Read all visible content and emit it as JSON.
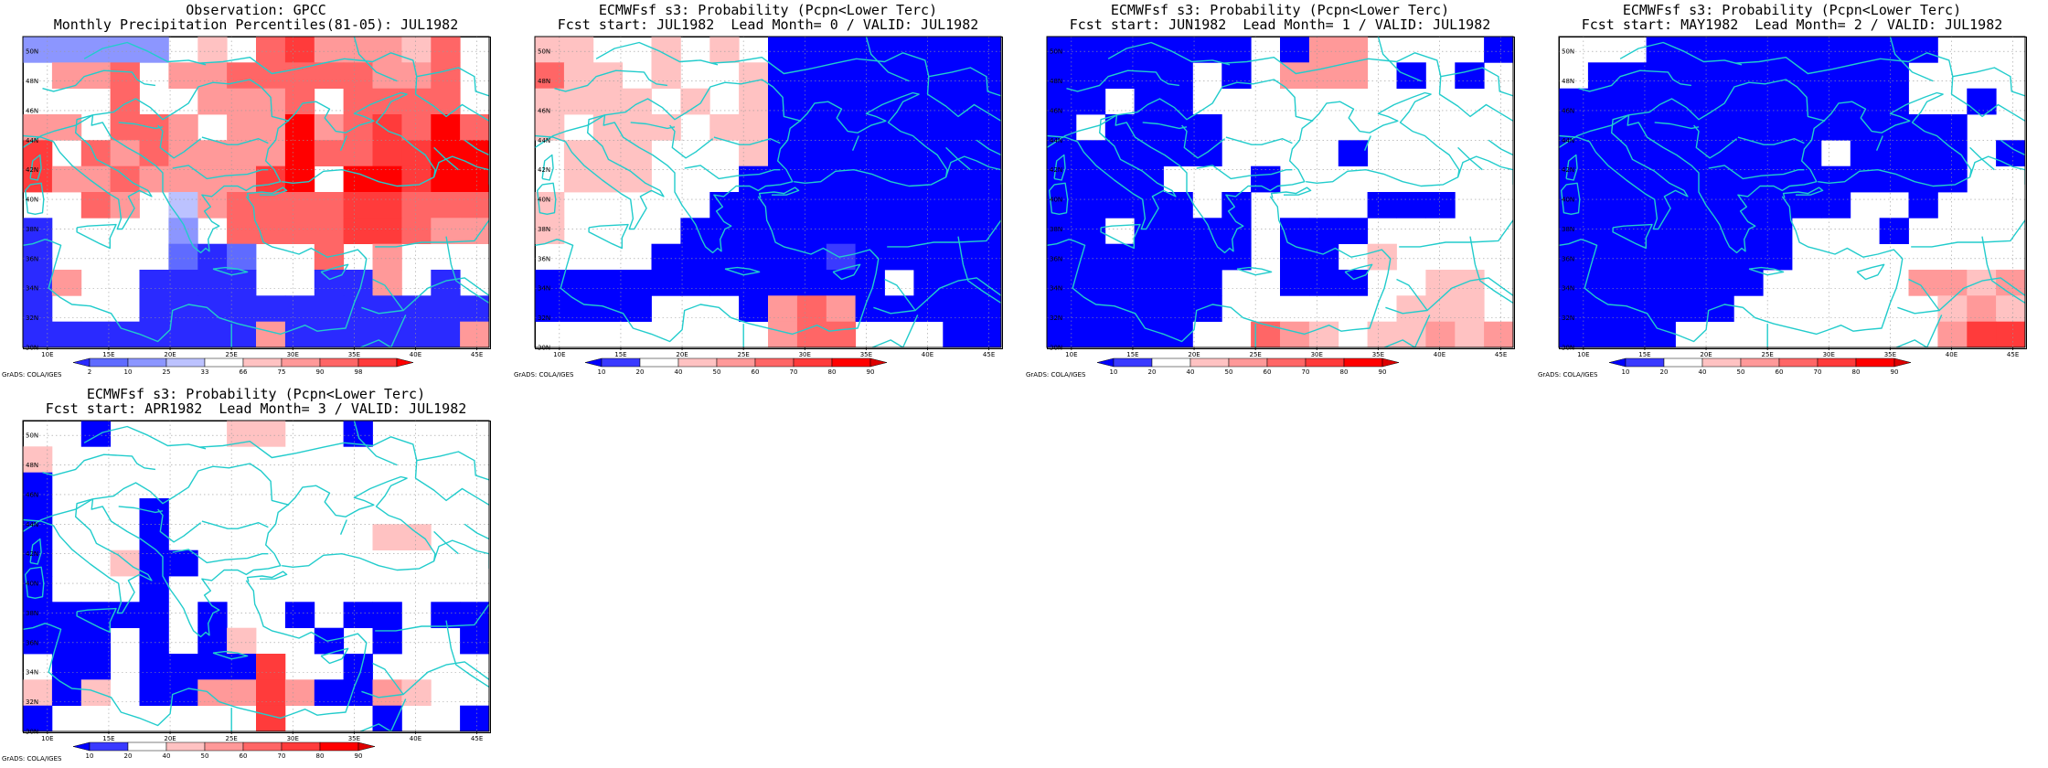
{
  "lat_labels": [
    "50N",
    "48N",
    "46N",
    "44N",
    "42N",
    "40N",
    "38N",
    "36N",
    "34N",
    "32N",
    "30N"
  ],
  "lon_labels": [
    "10E",
    "15E",
    "20E",
    "25E",
    "30E",
    "35E",
    "40E",
    "45E"
  ],
  "credit": "GrADS: COLA/IGES",
  "colors": {
    "coast": "#22cccc",
    "scale_obs": [
      "#2a2aff",
      "#5f6bff",
      "#8c96ff",
      "#bcc2ff",
      "#ffffff",
      "#ffc2c2",
      "#ff9999",
      "#ff6666",
      "#ff3b3b",
      "#ff0000"
    ],
    "scale_prob": [
      "#0000ff",
      "#3a3aff",
      "#ffffff",
      "#ffc2c2",
      "#ff9999",
      "#ff6666",
      "#ff3b3b",
      "#ff0000",
      "#dd0000"
    ]
  },
  "colorbars": {
    "obs": [
      "2",
      "10",
      "25",
      "33",
      "66",
      "75",
      "90",
      "98"
    ],
    "prob": [
      "10",
      "20",
      "40",
      "50",
      "60",
      "70",
      "80",
      "90"
    ]
  },
  "panels": [
    {
      "title1": "Observation: GPCC",
      "title2": "Monthly Precipitation Percentiles(81-05): JUL1982",
      "scale": "obs",
      "grid": [
        [
          2,
          2,
          2,
          2,
          2,
          4,
          5,
          4,
          7,
          8,
          6,
          6,
          6,
          5,
          7,
          4
        ],
        [
          4,
          6,
          6,
          7,
          4,
          6,
          6,
          7,
          7,
          7,
          7,
          7,
          6,
          6,
          7,
          4
        ],
        [
          4,
          4,
          4,
          7,
          4,
          4,
          6,
          6,
          6,
          7,
          4,
          7,
          7,
          7,
          7,
          4
        ],
        [
          6,
          6,
          4,
          7,
          7,
          6,
          4,
          6,
          6,
          9,
          6,
          7,
          8,
          7,
          9,
          7
        ],
        [
          8,
          4,
          7,
          6,
          7,
          6,
          6,
          6,
          6,
          9,
          7,
          7,
          8,
          8,
          9,
          9
        ],
        [
          8,
          6,
          6,
          7,
          6,
          6,
          6,
          6,
          8,
          9,
          4,
          9,
          9,
          8,
          9,
          9
        ],
        [
          4,
          4,
          7,
          6,
          4,
          3,
          6,
          7,
          7,
          7,
          7,
          8,
          8,
          7,
          7,
          7
        ],
        [
          0,
          4,
          4,
          4,
          4,
          2,
          4,
          7,
          7,
          7,
          7,
          8,
          8,
          7,
          6,
          6
        ],
        [
          0,
          4,
          4,
          4,
          4,
          1,
          0,
          1,
          4,
          4,
          7,
          4,
          6,
          4,
          4,
          4
        ],
        [
          0,
          6,
          4,
          4,
          0,
          0,
          0,
          0,
          4,
          4,
          0,
          0,
          6,
          4,
          0,
          4
        ],
        [
          0,
          4,
          4,
          4,
          0,
          0,
          0,
          0,
          0,
          0,
          0,
          0,
          0,
          0,
          0,
          0
        ],
        [
          0,
          0,
          0,
          0,
          0,
          0,
          0,
          0,
          6,
          0,
          0,
          0,
          0,
          0,
          0,
          6
        ]
      ]
    },
    {
      "title1": "ECMWFsf s3: Probability (Pcpn<Lower Terc)",
      "title2": "Fcst start: JUL1982  Lead Month= 0 / VALID: JUL1982",
      "scale": "prob",
      "grid": [
        [
          3,
          3,
          2,
          2,
          3,
          2,
          3,
          2,
          0,
          0,
          0,
          0,
          0,
          0,
          0,
          0
        ],
        [
          5,
          3,
          3,
          2,
          3,
          2,
          2,
          3,
          0,
          0,
          0,
          0,
          0,
          0,
          0,
          0
        ],
        [
          3,
          3,
          3,
          3,
          2,
          3,
          2,
          3,
          0,
          0,
          0,
          0,
          0,
          0,
          0,
          0
        ],
        [
          3,
          2,
          3,
          3,
          3,
          2,
          3,
          3,
          0,
          0,
          0,
          0,
          0,
          0,
          0,
          0
        ],
        [
          2,
          3,
          3,
          3,
          2,
          2,
          2,
          3,
          0,
          0,
          0,
          0,
          0,
          0,
          0,
          0
        ],
        [
          2,
          3,
          3,
          3,
          2,
          2,
          2,
          0,
          0,
          0,
          0,
          0,
          0,
          0,
          0,
          0
        ],
        [
          3,
          2,
          2,
          2,
          2,
          2,
          0,
          0,
          0,
          0,
          0,
          0,
          0,
          0,
          0,
          0
        ],
        [
          3,
          2,
          2,
          2,
          2,
          0,
          0,
          0,
          0,
          0,
          0,
          0,
          0,
          0,
          0,
          0
        ],
        [
          2,
          2,
          2,
          2,
          0,
          0,
          0,
          0,
          0,
          0,
          1,
          0,
          0,
          0,
          0,
          0
        ],
        [
          0,
          0,
          0,
          0,
          0,
          0,
          0,
          0,
          0,
          0,
          0,
          0,
          2,
          0,
          0,
          0
        ],
        [
          0,
          0,
          0,
          0,
          2,
          2,
          2,
          0,
          4,
          5,
          4,
          0,
          0,
          0,
          0,
          0
        ],
        [
          2,
          2,
          2,
          2,
          2,
          2,
          2,
          2,
          4,
          5,
          5,
          2,
          2,
          2,
          0,
          0
        ]
      ]
    },
    {
      "title1": "ECMWFsf s3: Probability (Pcpn<Lower Terc)",
      "title2": "Fcst start: JUN1982  Lead Month= 1 / VALID: JUL1982",
      "scale": "prob",
      "grid": [
        [
          0,
          0,
          0,
          0,
          0,
          0,
          0,
          2,
          0,
          4,
          4,
          2,
          2,
          2,
          2,
          0
        ],
        [
          0,
          0,
          0,
          0,
          0,
          2,
          0,
          2,
          4,
          4,
          4,
          2,
          0,
          2,
          0,
          2
        ],
        [
          0,
          0,
          2,
          0,
          0,
          2,
          2,
          2,
          2,
          2,
          2,
          2,
          2,
          2,
          2,
          2
        ],
        [
          0,
          2,
          0,
          0,
          0,
          0,
          2,
          2,
          2,
          2,
          2,
          2,
          2,
          2,
          2,
          2
        ],
        [
          0,
          0,
          0,
          0,
          0,
          0,
          2,
          2,
          2,
          2,
          0,
          2,
          2,
          2,
          2,
          2
        ],
        [
          0,
          0,
          0,
          0,
          2,
          2,
          2,
          0,
          2,
          2,
          2,
          2,
          2,
          2,
          2,
          2
        ],
        [
          0,
          0,
          0,
          0,
          0,
          2,
          0,
          2,
          2,
          2,
          2,
          0,
          0,
          0,
          2,
          2
        ],
        [
          0,
          0,
          2,
          0,
          0,
          0,
          0,
          2,
          0,
          0,
          0,
          2,
          2,
          2,
          2,
          2
        ],
        [
          0,
          0,
          0,
          0,
          0,
          0,
          0,
          2,
          0,
          0,
          2,
          3,
          2,
          2,
          2,
          2
        ],
        [
          0,
          0,
          0,
          0,
          0,
          0,
          2,
          2,
          0,
          0,
          0,
          2,
          2,
          3,
          3,
          2
        ],
        [
          0,
          0,
          0,
          0,
          0,
          0,
          2,
          2,
          2,
          2,
          2,
          2,
          3,
          3,
          3,
          2
        ],
        [
          0,
          0,
          0,
          0,
          0,
          2,
          2,
          5,
          4,
          3,
          2,
          3,
          3,
          4,
          3,
          4
        ]
      ]
    },
    {
      "title1": "ECMWFsf s3: Probability (Pcpn<Lower Terc)",
      "title2": "Fcst start: MAY1982  Lead Month= 2 / VALID: JUL1982",
      "scale": "prob",
      "grid": [
        [
          2,
          2,
          2,
          0,
          0,
          0,
          0,
          0,
          0,
          0,
          0,
          0,
          0,
          2,
          2,
          2
        ],
        [
          2,
          0,
          0,
          0,
          0,
          0,
          0,
          0,
          0,
          0,
          0,
          0,
          2,
          2,
          2,
          2
        ],
        [
          0,
          0,
          0,
          0,
          0,
          0,
          0,
          0,
          0,
          0,
          0,
          0,
          2,
          2,
          0,
          2
        ],
        [
          0,
          0,
          0,
          0,
          0,
          0,
          0,
          0,
          0,
          0,
          0,
          0,
          0,
          0,
          2,
          2
        ],
        [
          0,
          0,
          0,
          0,
          0,
          0,
          0,
          0,
          0,
          2,
          0,
          0,
          0,
          0,
          2,
          0
        ],
        [
          0,
          0,
          0,
          0,
          0,
          0,
          0,
          0,
          0,
          0,
          0,
          0,
          0,
          0,
          2,
          2
        ],
        [
          0,
          0,
          0,
          0,
          0,
          0,
          0,
          0,
          0,
          0,
          2,
          2,
          0,
          2,
          2,
          2
        ],
        [
          0,
          0,
          0,
          0,
          0,
          0,
          0,
          0,
          2,
          2,
          2,
          0,
          2,
          2,
          2,
          2
        ],
        [
          0,
          0,
          0,
          0,
          0,
          0,
          0,
          0,
          2,
          2,
          2,
          2,
          2,
          2,
          2,
          2
        ],
        [
          0,
          0,
          0,
          0,
          0,
          0,
          0,
          2,
          2,
          2,
          2,
          2,
          4,
          4,
          3,
          4
        ],
        [
          0,
          0,
          0,
          0,
          0,
          0,
          2,
          2,
          2,
          2,
          2,
          2,
          2,
          3,
          4,
          3
        ],
        [
          0,
          0,
          0,
          0,
          2,
          2,
          2,
          2,
          2,
          2,
          2,
          2,
          2,
          4,
          6,
          6
        ]
      ]
    },
    {
      "title1": "ECMWFsf s3: Probability (Pcpn<Lower Terc)",
      "title2": "Fcst start: APR1982  Lead Month= 3 / VALID: JUL1982",
      "scale": "prob",
      "grid": [
        [
          2,
          2,
          0,
          2,
          2,
          2,
          2,
          3,
          3,
          2,
          2,
          0,
          2,
          2,
          2,
          2
        ],
        [
          3,
          2,
          2,
          2,
          2,
          2,
          2,
          2,
          2,
          2,
          2,
          2,
          2,
          2,
          2,
          2
        ],
        [
          0,
          2,
          2,
          2,
          2,
          2,
          2,
          2,
          2,
          2,
          2,
          2,
          2,
          2,
          2,
          2
        ],
        [
          0,
          2,
          2,
          2,
          0,
          2,
          2,
          2,
          2,
          2,
          2,
          2,
          2,
          2,
          2,
          2
        ],
        [
          0,
          2,
          2,
          2,
          0,
          2,
          2,
          2,
          2,
          2,
          2,
          2,
          3,
          3,
          2,
          2
        ],
        [
          0,
          2,
          2,
          3,
          0,
          0,
          2,
          2,
          2,
          2,
          2,
          2,
          2,
          2,
          2,
          2
        ],
        [
          0,
          2,
          2,
          2,
          0,
          2,
          2,
          2,
          2,
          2,
          2,
          2,
          2,
          2,
          2,
          2
        ],
        [
          0,
          0,
          0,
          0,
          0,
          2,
          0,
          2,
          2,
          0,
          2,
          0,
          0,
          2,
          0,
          0
        ],
        [
          0,
          0,
          0,
          2,
          0,
          2,
          0,
          3,
          2,
          2,
          0,
          2,
          0,
          2,
          2,
          0
        ],
        [
          2,
          0,
          0,
          2,
          0,
          0,
          0,
          0,
          6,
          2,
          2,
          0,
          2,
          2,
          2,
          2
        ],
        [
          3,
          0,
          3,
          2,
          0,
          0,
          4,
          4,
          6,
          4,
          0,
          0,
          4,
          3,
          2,
          2
        ],
        [
          0,
          2,
          2,
          2,
          2,
          2,
          2,
          2,
          6,
          2,
          2,
          2,
          0,
          2,
          2,
          0
        ]
      ]
    }
  ]
}
